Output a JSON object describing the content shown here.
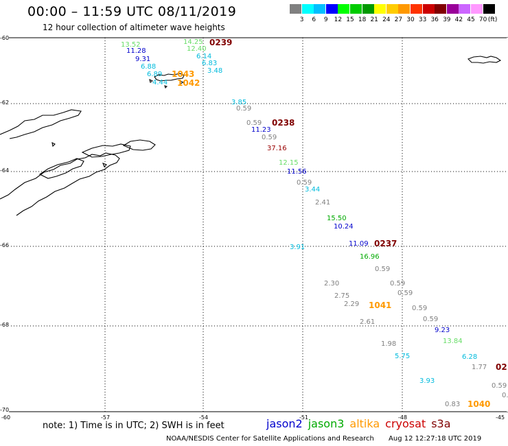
{
  "header": {
    "title": "00:00 – 11:59 UTC 08/11/2019",
    "subtitle": "12 hour collection of altimeter wave heights"
  },
  "colorbar": {
    "unit": "(ft)",
    "colors": [
      "#808080",
      "#00ffff",
      "#00bfff",
      "#0000ff",
      "#00ff00",
      "#00cc00",
      "#009900",
      "#ffff00",
      "#ffcc00",
      "#ff9900",
      "#ff3300",
      "#cc0000",
      "#800000",
      "#990099",
      "#cc66ff",
      "#ff99ff",
      "#000000"
    ],
    "labels": [
      "3",
      "6",
      "9",
      "12",
      "15",
      "18",
      "21",
      "24",
      "27",
      "30",
      "33",
      "36",
      "39",
      "42",
      "45",
      "70"
    ]
  },
  "axes": {
    "lat_labels": [
      "-60",
      "-62",
      "-64",
      "-66",
      "-68",
      "-70"
    ],
    "lon_labels": [
      "-60",
      "-57",
      "-54",
      "-51",
      "-48",
      "-45"
    ]
  },
  "wave_heights": [
    {
      "v": "13.52",
      "c": "#66dd66"
    },
    {
      "v": "11.28",
      "c": "#0000cc"
    },
    {
      "v": "9.31",
      "c": "#0000cc"
    },
    {
      "v": "6.88",
      "c": "#00bbdd"
    },
    {
      "v": "6.89",
      "c": "#00bbdd"
    },
    {
      "v": "4.44",
      "c": "#00bbdd"
    },
    {
      "v": "14.25",
      "c": "#66dd66"
    },
    {
      "v": "12.40",
      "c": "#66dd66"
    },
    {
      "v": "6.14",
      "c": "#00bbdd"
    },
    {
      "v": "6.83",
      "c": "#00bbdd"
    },
    {
      "v": "3.48",
      "c": "#00bbdd"
    },
    {
      "v": "3.85",
      "c": "#00bbdd"
    },
    {
      "v": "0.59",
      "c": "#808080"
    },
    {
      "v": "0.59",
      "c": "#808080"
    },
    {
      "v": "11.23",
      "c": "#0000cc"
    },
    {
      "v": "0.59",
      "c": "#808080"
    },
    {
      "v": "37.16",
      "c": "#990000"
    },
    {
      "v": "12.15",
      "c": "#66dd66"
    },
    {
      "v": "11.56",
      "c": "#0000cc"
    },
    {
      "v": "0.59",
      "c": "#808080"
    },
    {
      "v": "3.44",
      "c": "#00bbdd"
    },
    {
      "v": "2.41",
      "c": "#808080"
    },
    {
      "v": "15.50",
      "c": "#00aa00"
    },
    {
      "v": "10.24",
      "c": "#0000cc"
    },
    {
      "v": "3.91",
      "c": "#00bbdd"
    },
    {
      "v": "11.09",
      "c": "#0000cc"
    },
    {
      "v": "16.96",
      "c": "#00aa00"
    },
    {
      "v": "0.59",
      "c": "#808080"
    },
    {
      "v": "2.30",
      "c": "#808080"
    },
    {
      "v": "0.59",
      "c": "#808080"
    },
    {
      "v": "2.75",
      "c": "#808080"
    },
    {
      "v": "0.59",
      "c": "#808080"
    },
    {
      "v": "2.29",
      "c": "#808080"
    },
    {
      "v": "0.59",
      "c": "#808080"
    },
    {
      "v": "0.59",
      "c": "#808080"
    },
    {
      "v": "2.61",
      "c": "#808080"
    },
    {
      "v": "9.23",
      "c": "#0000cc"
    },
    {
      "v": "1.98",
      "c": "#808080"
    },
    {
      "v": "13.84",
      "c": "#66dd66"
    },
    {
      "v": "5.75",
      "c": "#00bbdd"
    },
    {
      "v": "6.28",
      "c": "#00bbdd"
    },
    {
      "v": "1.77",
      "c": "#808080"
    },
    {
      "v": "3.93",
      "c": "#00bbdd"
    },
    {
      "v": "0.59",
      "c": "#808080"
    },
    {
      "v": "0.",
      "c": "#808080"
    },
    {
      "v": "0.83",
      "c": "#808080"
    }
  ],
  "time_labels": [
    {
      "v": "0239",
      "c": "#800000"
    },
    {
      "v": "1043",
      "c": "#ff9900"
    },
    {
      "v": "1042",
      "c": "#ff9900"
    },
    {
      "v": "0238",
      "c": "#800000"
    },
    {
      "v": "0237",
      "c": "#800000"
    },
    {
      "v": "1041",
      "c": "#ff9900"
    },
    {
      "v": "1040",
      "c": "#ff9900"
    },
    {
      "v": "02",
      "c": "#800000"
    }
  ],
  "footer": {
    "note": "note: 1) Time is in UTC; 2) SWH is in feet",
    "satellites": [
      {
        "name": "jason2",
        "color": "#0000cc"
      },
      {
        "name": "jason3",
        "color": "#00aa00"
      },
      {
        "name": "altika",
        "color": "#ff9900"
      },
      {
        "name": "cryosat",
        "color": "#cc0000"
      },
      {
        "name": "s3a",
        "color": "#800000"
      }
    ],
    "credit": "NOAA/NESDIS Center for Satellite Applications and Research",
    "timestamp": "Aug 12 12:27:18 UTC 2019"
  }
}
